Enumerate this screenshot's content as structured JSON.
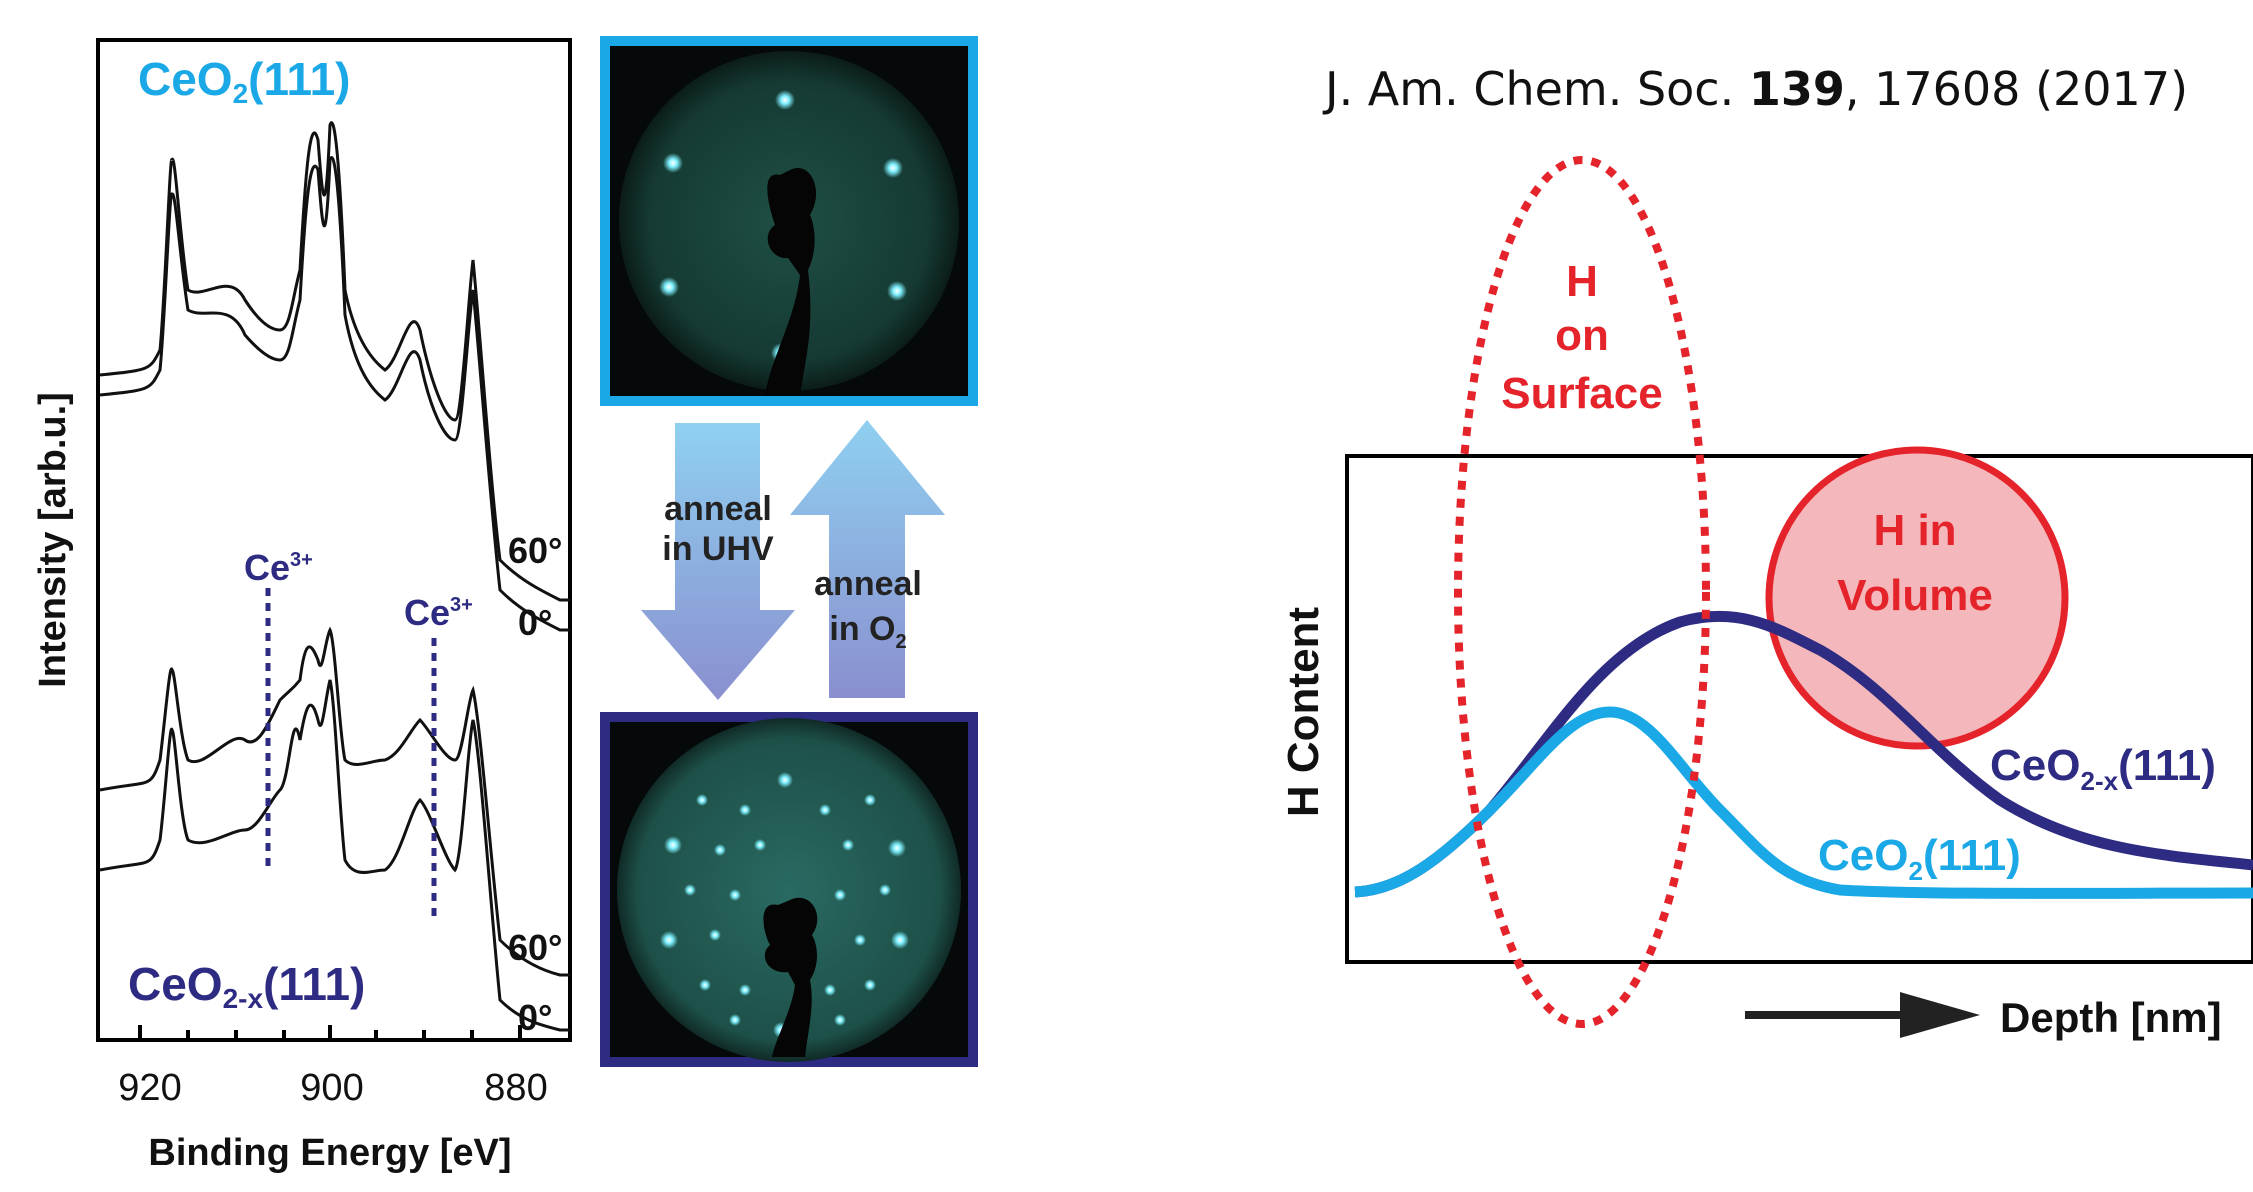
{
  "citation": {
    "journal": "J. Am. Chem. Soc. ",
    "volume": "139",
    "rest": ", 17608  (2017)"
  },
  "xps": {
    "top_label_main": "CeO",
    "top_label_sub": "2",
    "top_label_tail": "(111)",
    "bottom_label_main": "CeO",
    "bottom_label_sub": "2-x",
    "bottom_label_tail": "(111)",
    "ylabel": "Intensity [arb.u.]",
    "xlabel": "Binding Energy [eV]",
    "xticks": [
      "920",
      "900",
      "880"
    ],
    "angles": [
      "60°",
      "0°",
      "60°",
      "0°"
    ],
    "ce3": "Ce",
    "ce3_sup": "3+"
  },
  "arrows": {
    "down_line1": "anneal",
    "down_line2": "in UHV",
    "up_line1": "anneal",
    "up_line2": "in O",
    "up_line2_sub": "2"
  },
  "colors": {
    "light_blue": "#1ba8e6",
    "dark_blue": "#2e2b82",
    "red": "#e5232a",
    "pink_fill": "#f4b8bc"
  },
  "schematic": {
    "surface_line1": "H",
    "surface_line2": "on",
    "surface_line3": "Surface",
    "volume_line1": "H in",
    "volume_line2": "Volume",
    "ylabel": "H Content",
    "xlabel": "Depth [nm]",
    "series_dark_main": "CeO",
    "series_dark_sub": "2-x",
    "series_dark_tail": "(111)",
    "series_light_main": "CeO",
    "series_light_sub": "2",
    "series_light_tail": "(111)"
  }
}
